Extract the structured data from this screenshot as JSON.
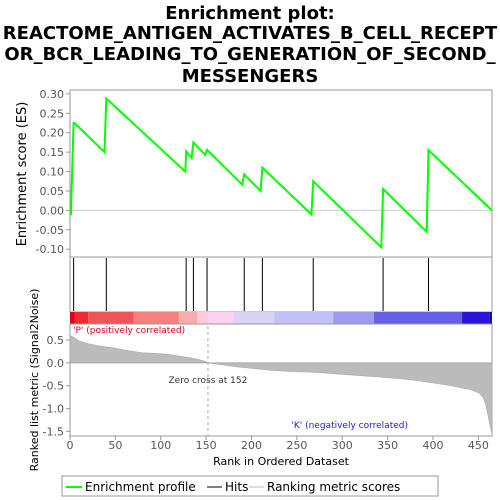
{
  "chart_data": {
    "type": "line",
    "title_lines": [
      "Enrichment plot:",
      "REACTOME_ANTIGEN_ACTIVATES_B_CELL_RECEPT",
      "OR_BCR_LEADING_TO_GENERATION_OF_SECOND_",
      "MESSENGERS"
    ],
    "xlabel": "Rank in Ordered Dataset",
    "es_ylabel": "Enrichment score (ES)",
    "metric_ylabel": "Ranked list metric (Signal2Noise)",
    "xlim": [
      0,
      465
    ],
    "x_ticks": [
      "0",
      "50",
      "100",
      "150",
      "200",
      "250",
      "300",
      "350",
      "400",
      "450"
    ],
    "es_ylim": [
      -0.12,
      0.31
    ],
    "es_ticks": [
      "0.30",
      "0.25",
      "0.20",
      "0.15",
      "0.10",
      "0.05",
      "0.00",
      "-0.05",
      "-0.10"
    ],
    "metric_ylim": [
      -1.6,
      0.85
    ],
    "metric_ticks": [
      "0.5",
      "0.0",
      "-0.5",
      "-1.0",
      "-1.5"
    ],
    "enrichment_profile": {
      "color": "#00ff00",
      "x": [
        0,
        1,
        4,
        5,
        38,
        40,
        127,
        128,
        134,
        136,
        149,
        151,
        190,
        192,
        210,
        212,
        266,
        268,
        343,
        345,
        393,
        395,
        465
      ],
      "y": [
        -0.01,
        -0.01,
        0.225,
        0.225,
        0.15,
        0.288,
        0.1,
        0.152,
        0.135,
        0.175,
        0.143,
        0.156,
        0.066,
        0.093,
        0.05,
        0.11,
        -0.01,
        0.075,
        -0.095,
        0.055,
        -0.055,
        0.155,
        0.0
      ]
    },
    "hits": [
      4,
      40,
      128,
      136,
      151,
      192,
      212,
      268,
      345,
      395
    ],
    "ranked_metric_points": {
      "x": [
        0,
        5,
        10,
        20,
        30,
        40,
        50,
        60,
        70,
        80,
        100,
        110,
        120,
        130,
        140,
        150,
        152,
        160,
        180,
        200,
        220,
        240,
        260,
        280,
        300,
        320,
        340,
        360,
        380,
        400,
        420,
        440,
        450,
        455,
        458,
        460,
        462,
        465
      ],
      "y": [
        0.6,
        0.55,
        0.48,
        0.42,
        0.38,
        0.35,
        0.32,
        0.28,
        0.25,
        0.22,
        0.2,
        0.18,
        0.15,
        0.12,
        0.08,
        0.03,
        0.0,
        -0.02,
        -0.08,
        -0.12,
        -0.16,
        -0.19,
        -0.2,
        -0.22,
        -0.25,
        -0.28,
        -0.31,
        -0.34,
        -0.38,
        -0.44,
        -0.5,
        -0.58,
        -0.65,
        -0.75,
        -0.9,
        -1.1,
        -1.3,
        -1.55
      ]
    },
    "zero_cross_label": "Zero cross at 152",
    "positive_label": "'P' (positively correlated)",
    "negative_label": "'K' (negatively correlated)",
    "positive_color": "#e8001c",
    "negative_color": "#2222cc",
    "legend": [
      {
        "label": "Enrichment profile",
        "color": "#00ff00"
      },
      {
        "label": "Hits",
        "color": "#000000"
      },
      {
        "label": "Ranking metric scores",
        "color": "#bbbbbb"
      }
    ],
    "legend_position": "bottom"
  }
}
